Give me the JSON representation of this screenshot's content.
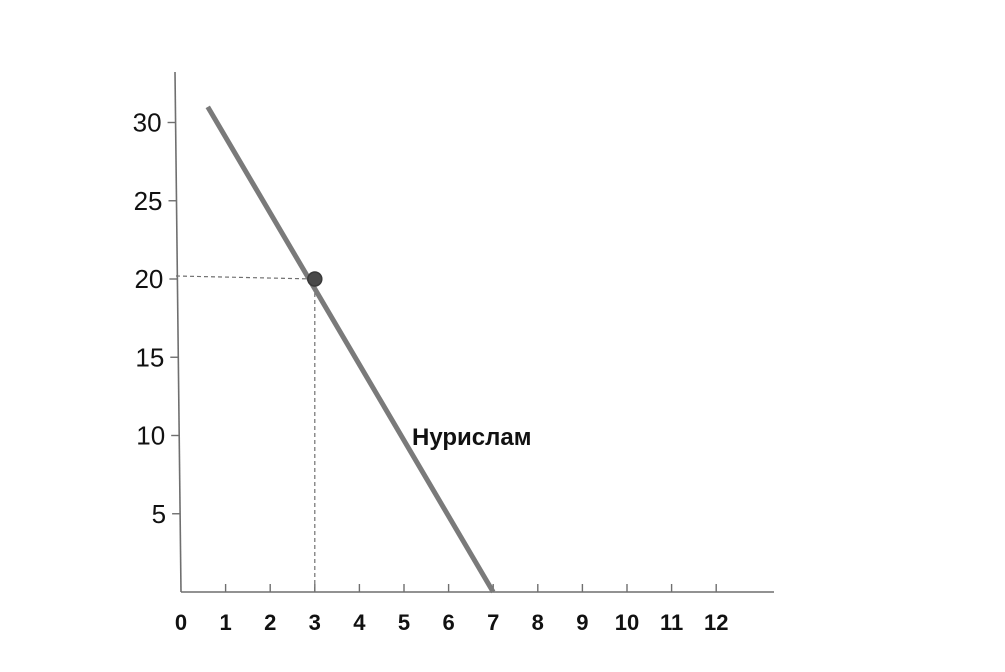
{
  "chart_data": {
    "type": "line",
    "title": "",
    "xlabel": "",
    "ylabel": "",
    "xlim": [
      0,
      13
    ],
    "ylim": [
      0,
      32
    ],
    "x_ticks": [
      "0",
      "1",
      "2",
      "3",
      "4",
      "5",
      "6",
      "7",
      "8",
      "9",
      "10",
      "11",
      "12"
    ],
    "y_ticks": [
      "5",
      "10",
      "15",
      "20",
      "25",
      "30"
    ],
    "grid": false,
    "legend": "none",
    "series": [
      {
        "name": "Нурислам",
        "x": [
          0.6,
          7
        ],
        "y": [
          31,
          0
        ]
      }
    ],
    "highlight_point": {
      "x": 3,
      "y": 20
    },
    "colors": {
      "series": "#7a7a7a",
      "point": "#4a4a4a",
      "axis": "#6f6f6f"
    }
  }
}
